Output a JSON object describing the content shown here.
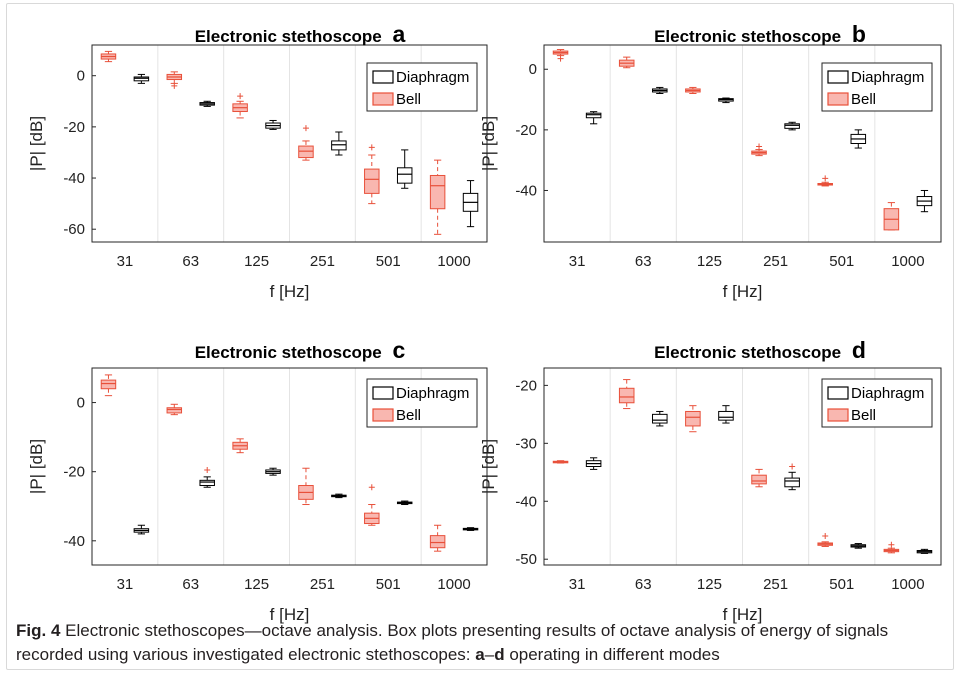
{
  "figure": {
    "caption_label": "Fig. 4",
    "caption_text": "  Electronic stethoscopes—octave analysis. Box plots presenting results of octave analysis of energy of signals recorded using various investigated electronic stethoscopes: ",
    "caption_bold_a": "a",
    "caption_dash": "–",
    "caption_bold_d": "d",
    "caption_tail": " operating in different modes"
  },
  "chart_data": [
    {
      "type": "box",
      "title": "Electronic stethoscope",
      "panel_letter": "a",
      "xlabel": "f [Hz]",
      "ylabel": "|P| [dB]",
      "ylim": [
        -65,
        12
      ],
      "yticks": [
        0,
        -20,
        -40,
        -60
      ],
      "categories": [
        "31",
        "63",
        "125",
        "251",
        "501",
        "1000"
      ],
      "legend": {
        "position": "top-right",
        "entries": [
          "Diaphragm",
          "Bell"
        ]
      },
      "colors": {
        "Diaphragm": "#000000",
        "Bell": "#e8503a",
        "Bell_fill": "#f9b7b0"
      },
      "grid": "vertical",
      "series": [
        {
          "name": "Bell",
          "boxes": [
            {
              "cat": "31",
              "min": 5.5,
              "q1": 6.5,
              "median": 7.5,
              "q3": 8.5,
              "max": 9.5,
              "outliers": []
            },
            {
              "cat": "63",
              "min": -3,
              "q1": -1.5,
              "median": -0.5,
              "q3": 0.5,
              "max": 1.5,
              "outliers": [
                -4
              ]
            },
            {
              "cat": "125",
              "min": -16.5,
              "q1": -14,
              "median": -12.5,
              "q3": -11,
              "max": -10,
              "outliers": [
                -8
              ]
            },
            {
              "cat": "251",
              "min": -33,
              "q1": -32,
              "median": -29.5,
              "q3": -27.5,
              "max": -25.5,
              "outliers": [
                -20.5
              ]
            },
            {
              "cat": "501",
              "min": -50,
              "q1": -46,
              "median": -40.5,
              "q3": -36.5,
              "max": -31,
              "outliers": [
                -28
              ]
            },
            {
              "cat": "1000",
              "min": -62,
              "q1": -52,
              "median": -43,
              "q3": -39,
              "max": -33,
              "outliers": []
            }
          ]
        },
        {
          "name": "Diaphragm",
          "boxes": [
            {
              "cat": "31",
              "min": -3,
              "q1": -2,
              "median": -1,
              "q3": -0.5,
              "max": 0.5,
              "outliers": []
            },
            {
              "cat": "63",
              "min": -12,
              "q1": -11.5,
              "median": -11,
              "q3": -10.5,
              "max": -10,
              "outliers": []
            },
            {
              "cat": "125",
              "min": -21,
              "q1": -20.5,
              "median": -19.5,
              "q3": -18.5,
              "max": -17.5,
              "outliers": []
            },
            {
              "cat": "251",
              "min": -31,
              "q1": -29,
              "median": -27,
              "q3": -25.5,
              "max": -22,
              "outliers": []
            },
            {
              "cat": "501",
              "min": -44,
              "q1": -42,
              "median": -38.5,
              "q3": -36,
              "max": -29,
              "outliers": []
            },
            {
              "cat": "1000",
              "min": -59,
              "q1": -53,
              "median": -49.5,
              "q3": -46,
              "max": -41,
              "outliers": []
            }
          ]
        }
      ]
    },
    {
      "type": "box",
      "title": "Electronic stethoscope",
      "panel_letter": "b",
      "xlabel": "f [Hz]",
      "ylabel": "|P| [dB]",
      "ylim": [
        -57,
        8
      ],
      "yticks": [
        0,
        -20,
        -40
      ],
      "categories": [
        "31",
        "63",
        "125",
        "251",
        "501",
        "1000"
      ],
      "legend": {
        "position": "top-right",
        "entries": [
          "Diaphragm",
          "Bell"
        ]
      },
      "colors": {
        "Diaphragm": "#000000",
        "Bell": "#e8503a",
        "Bell_fill": "#f9b7b0"
      },
      "grid": "vertical",
      "series": [
        {
          "name": "Bell",
          "boxes": [
            {
              "cat": "31",
              "min": 4.5,
              "q1": 5,
              "median": 5.5,
              "q3": 6,
              "max": 6.5,
              "outliers": [
                3.5
              ]
            },
            {
              "cat": "63",
              "min": 0.5,
              "q1": 1,
              "median": 2,
              "q3": 3,
              "max": 4,
              "outliers": []
            },
            {
              "cat": "125",
              "min": -8,
              "q1": -7.5,
              "median": -7,
              "q3": -6.5,
              "max": -6,
              "outliers": []
            },
            {
              "cat": "251",
              "min": -28.5,
              "q1": -28,
              "median": -27.5,
              "q3": -27,
              "max": -26.5,
              "outliers": [
                -25.5
              ]
            },
            {
              "cat": "501",
              "min": -38.5,
              "q1": -38.2,
              "median": -38,
              "q3": -37.7,
              "max": -37.3,
              "outliers": [
                -36
              ]
            },
            {
              "cat": "1000",
              "min": -53,
              "q1": -53,
              "median": -49.5,
              "q3": -46,
              "max": -44,
              "outliers": []
            }
          ]
        },
        {
          "name": "Diaphragm",
          "boxes": [
            {
              "cat": "31",
              "min": -18,
              "q1": -16,
              "median": -15,
              "q3": -14.5,
              "max": -14,
              "outliers": []
            },
            {
              "cat": "63",
              "min": -8,
              "q1": -7.5,
              "median": -7,
              "q3": -6.5,
              "max": -6,
              "outliers": []
            },
            {
              "cat": "125",
              "min": -11,
              "q1": -10.5,
              "median": -10,
              "q3": -9.7,
              "max": -9.5,
              "outliers": []
            },
            {
              "cat": "251",
              "min": -20,
              "q1": -19.5,
              "median": -18.5,
              "q3": -18,
              "max": -17.5,
              "outliers": []
            },
            {
              "cat": "501",
              "min": -26,
              "q1": -24.5,
              "median": -23,
              "q3": -21.5,
              "max": -20,
              "outliers": []
            },
            {
              "cat": "1000",
              "min": -47,
              "q1": -45,
              "median": -43.5,
              "q3": -42,
              "max": -40,
              "outliers": []
            }
          ]
        }
      ]
    },
    {
      "type": "box",
      "title": "Electronic stethoscope",
      "panel_letter": "c",
      "xlabel": "f [Hz]",
      "ylabel": "|P| [dB]",
      "ylim": [
        -47,
        10
      ],
      "yticks": [
        0,
        -20,
        -40
      ],
      "categories": [
        "31",
        "63",
        "125",
        "251",
        "501",
        "1000"
      ],
      "legend": {
        "position": "top-right",
        "entries": [
          "Diaphragm",
          "Bell"
        ]
      },
      "colors": {
        "Diaphragm": "#000000",
        "Bell": "#e8503a",
        "Bell_fill": "#f9b7b0"
      },
      "grid": "vertical",
      "series": [
        {
          "name": "Bell",
          "boxes": [
            {
              "cat": "31",
              "min": 2,
              "q1": 4,
              "median": 5.5,
              "q3": 6.5,
              "max": 8,
              "outliers": []
            },
            {
              "cat": "63",
              "min": -3.5,
              "q1": -3,
              "median": -2,
              "q3": -1.5,
              "max": -0.5,
              "outliers": []
            },
            {
              "cat": "125",
              "min": -14.5,
              "q1": -13.5,
              "median": -12.5,
              "q3": -11.5,
              "max": -10.5,
              "outliers": []
            },
            {
              "cat": "251",
              "min": -29.5,
              "q1": -28,
              "median": -26,
              "q3": -24,
              "max": -19,
              "outliers": []
            },
            {
              "cat": "501",
              "min": -35.5,
              "q1": -35,
              "median": -33.5,
              "q3": -32,
              "max": -29.5,
              "outliers": [
                -24.5
              ]
            },
            {
              "cat": "1000",
              "min": -43,
              "q1": -42,
              "median": -40.5,
              "q3": -38.5,
              "max": -35.5,
              "outliers": []
            }
          ]
        },
        {
          "name": "Diaphragm",
          "boxes": [
            {
              "cat": "31",
              "min": -38,
              "q1": -37.5,
              "median": -37,
              "q3": -36.5,
              "max": -35.5,
              "outliers": []
            },
            {
              "cat": "63",
              "min": -24.5,
              "q1": -24,
              "median": -23,
              "q3": -22.5,
              "max": -21.5,
              "outliers": [
                -19.5
              ]
            },
            {
              "cat": "125",
              "min": -21,
              "q1": -20.5,
              "median": -20,
              "q3": -19.5,
              "max": -19,
              "outliers": []
            },
            {
              "cat": "251",
              "min": -27.5,
              "q1": -27.2,
              "median": -27,
              "q3": -26.8,
              "max": -26.5,
              "outliers": []
            },
            {
              "cat": "501",
              "min": -29.5,
              "q1": -29.2,
              "median": -29,
              "q3": -28.8,
              "max": -28.5,
              "outliers": []
            },
            {
              "cat": "1000",
              "min": -37,
              "q1": -36.8,
              "median": -36.6,
              "q3": -36.4,
              "max": -36.2,
              "outliers": []
            }
          ]
        }
      ]
    },
    {
      "type": "box",
      "title": "Electronic stethoscope",
      "panel_letter": "d",
      "xlabel": "f [Hz]",
      "ylabel": "|P| [dB]",
      "ylim": [
        -51,
        -17
      ],
      "yticks": [
        -20,
        -30,
        -40,
        -50
      ],
      "categories": [
        "31",
        "63",
        "125",
        "251",
        "501",
        "1000"
      ],
      "legend": {
        "position": "top-right",
        "entries": [
          "Diaphragm",
          "Bell"
        ]
      },
      "colors": {
        "Diaphragm": "#000000",
        "Bell": "#e8503a",
        "Bell_fill": "#f9b7b0"
      },
      "grid": "vertical",
      "series": [
        {
          "name": "Bell",
          "boxes": [
            {
              "cat": "31",
              "min": -33.4,
              "q1": -33.3,
              "median": -33.2,
              "q3": -33.1,
              "max": -33,
              "outliers": []
            },
            {
              "cat": "63",
              "min": -24,
              "q1": -23,
              "median": -22,
              "q3": -20.5,
              "max": -19,
              "outliers": []
            },
            {
              "cat": "125",
              "min": -28,
              "q1": -27,
              "median": -25.5,
              "q3": -24.5,
              "max": -23.5,
              "outliers": []
            },
            {
              "cat": "251",
              "min": -37.5,
              "q1": -37,
              "median": -36.5,
              "q3": -35.5,
              "max": -34.5,
              "outliers": []
            },
            {
              "cat": "501",
              "min": -47.8,
              "q1": -47.6,
              "median": -47.4,
              "q3": -47.2,
              "max": -47,
              "outliers": [
                -46
              ]
            },
            {
              "cat": "1000",
              "min": -48.9,
              "q1": -48.7,
              "median": -48.5,
              "q3": -48.3,
              "max": -48.1,
              "outliers": [
                -47.5
              ]
            }
          ]
        },
        {
          "name": "Diaphragm",
          "boxes": [
            {
              "cat": "31",
              "min": -34.5,
              "q1": -34,
              "median": -33.5,
              "q3": -33,
              "max": -32.5,
              "outliers": []
            },
            {
              "cat": "63",
              "min": -27,
              "q1": -26.5,
              "median": -26,
              "q3": -25,
              "max": -24.5,
              "outliers": []
            },
            {
              "cat": "125",
              "min": -26.5,
              "q1": -26,
              "median": -25.5,
              "q3": -24.5,
              "max": -23.5,
              "outliers": []
            },
            {
              "cat": "251",
              "min": -38,
              "q1": -37.5,
              "median": -36.5,
              "q3": -36,
              "max": -35,
              "outliers": [
                -34
              ]
            },
            {
              "cat": "501",
              "min": -48.1,
              "q1": -47.9,
              "median": -47.7,
              "q3": -47.5,
              "max": -47.3,
              "outliers": []
            },
            {
              "cat": "1000",
              "min": -49,
              "q1": -48.9,
              "median": -48.7,
              "q3": -48.5,
              "max": -48.3,
              "outliers": []
            }
          ]
        }
      ]
    }
  ]
}
